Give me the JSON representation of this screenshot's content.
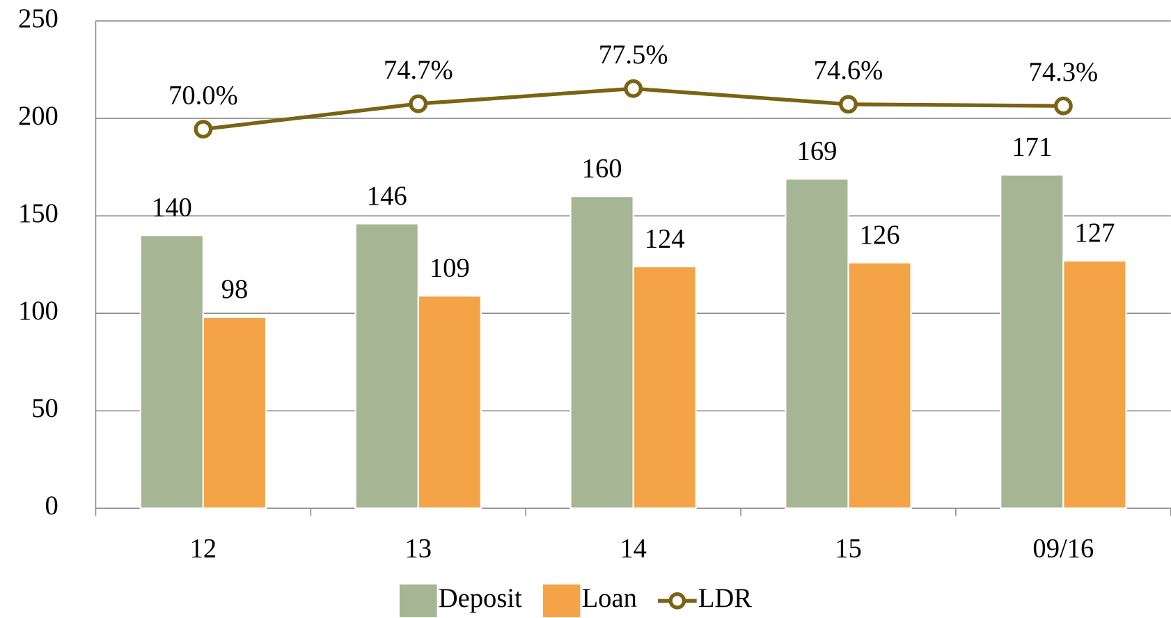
{
  "chart_data": {
    "type": "bar",
    "categories": [
      "12",
      "13",
      "14",
      "15",
      "09/16"
    ],
    "series": [
      {
        "name": "Deposit",
        "type": "bar",
        "color": "#a6b593",
        "values": [
          140,
          146,
          160,
          169,
          171
        ]
      },
      {
        "name": "Loan",
        "type": "bar",
        "color": "#f4a447",
        "values": [
          98,
          109,
          124,
          126,
          127
        ]
      },
      {
        "name": "LDR",
        "type": "line",
        "axis": "y2",
        "color": "#7a6314",
        "values": [
          70.0,
          74.7,
          77.5,
          74.6,
          74.3
        ],
        "value_labels": [
          "70.0%",
          "74.7%",
          "77.5%",
          "74.6%",
          "74.3%"
        ]
      }
    ],
    "ylim": [
      0,
      250
    ],
    "yticks": [
      0,
      50,
      100,
      150,
      200,
      250
    ],
    "y2lim": [
      0,
      90
    ],
    "grid": true,
    "legend": "bottom"
  }
}
